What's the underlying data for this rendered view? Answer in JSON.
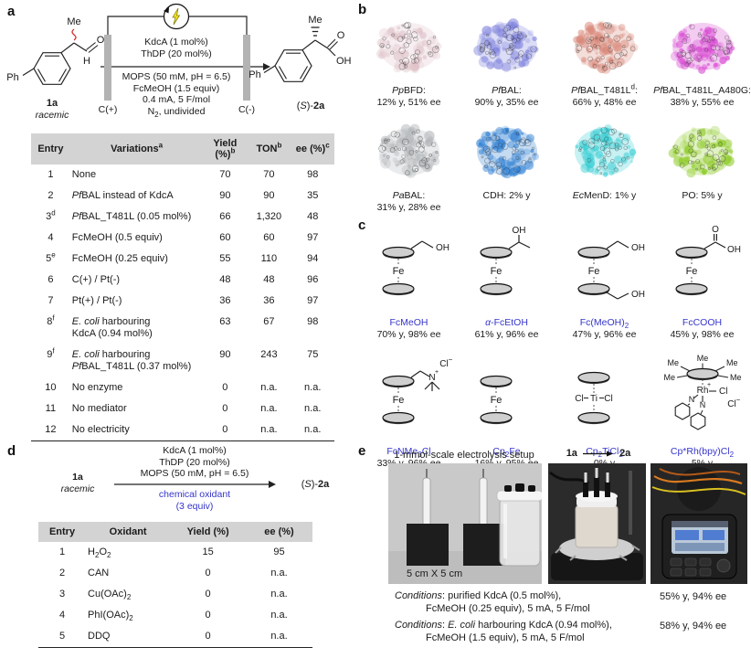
{
  "panels": {
    "a": "a",
    "b": "b",
    "c": "c",
    "d": "d",
    "e": "e"
  },
  "colors": {
    "blue_text": "#3535cb",
    "red": "#e03030",
    "header_bg": "#d3d3d3"
  },
  "scheme_a": {
    "substrate_label": "1a",
    "substrate_sub": "racemic",
    "atoms": {
      "me": "Me",
      "o": "O",
      "h": "H",
      "ph": "Ph",
      "oh": "OH"
    },
    "cond_above": [
      "KdcA (1 mol%)",
      "ThDP (20 mol%)"
    ],
    "cond_below": [
      [
        [
          "n",
          "MOPS (50 mM, pH = 6.5)"
        ]
      ],
      [
        [
          "n",
          "FcMeOH (1.5 equiv)"
        ]
      ],
      [
        [
          "n",
          "0.4 mA, 5 F/mol"
        ]
      ],
      [
        [
          "n",
          "N"
        ],
        [
          "sub",
          "2"
        ],
        [
          "n",
          ", undivided"
        ]
      ]
    ],
    "electrode_left": "C(+)",
    "electrode_right": "C(-)",
    "product_label": [
      [
        "n",
        "("
      ],
      [
        "i",
        "S"
      ],
      [
        "n",
        ")-"
      ],
      [
        "b",
        "2a"
      ]
    ]
  },
  "table_a": {
    "headers": [
      [
        [
          "n",
          "Entry"
        ]
      ],
      [
        [
          "n",
          "Variations"
        ],
        [
          "sup",
          "a"
        ]
      ],
      [
        [
          "n",
          "Yield (%)"
        ],
        [
          "sup",
          "b"
        ]
      ],
      [
        [
          "n",
          "TON"
        ],
        [
          "sup",
          "b"
        ]
      ],
      [
        [
          "n",
          "ee (%)"
        ],
        [
          "sup",
          "c"
        ]
      ]
    ],
    "rows": [
      {
        "entry": [
          [
            "n",
            "1"
          ]
        ],
        "variation": [
          [
            "n",
            "None"
          ]
        ],
        "yield": "70",
        "ton": "70",
        "ee": "98"
      },
      {
        "entry": [
          [
            "n",
            "2"
          ]
        ],
        "variation": [
          [
            "i",
            "Pf"
          ],
          [
            "n",
            "BAL instead of KdcA"
          ]
        ],
        "yield": "90",
        "ton": "90",
        "ee": "35"
      },
      {
        "entry": [
          [
            "n",
            "3"
          ],
          [
            "sup",
            "d"
          ]
        ],
        "variation": [
          [
            "i",
            "Pf"
          ],
          [
            "n",
            "BAL_T481L (0.05 mol%)"
          ]
        ],
        "yield": "66",
        "ton": "1,320",
        "ee": "48"
      },
      {
        "entry": [
          [
            "n",
            "4"
          ]
        ],
        "variation": [
          [
            "n",
            "FcMeOH (0.5 equiv)"
          ]
        ],
        "yield": "60",
        "ton": "60",
        "ee": "97"
      },
      {
        "entry": [
          [
            "n",
            "5"
          ],
          [
            "sup",
            "e"
          ]
        ],
        "variation": [
          [
            "n",
            "FcMeOH (0.25 equiv)"
          ]
        ],
        "yield": "55",
        "ton": "110",
        "ee": "94"
      },
      {
        "entry": [
          [
            "n",
            "6"
          ]
        ],
        "variation": [
          [
            "n",
            "C(+) / Pt(-)"
          ]
        ],
        "yield": "48",
        "ton": "48",
        "ee": "96"
      },
      {
        "entry": [
          [
            "n",
            "7"
          ]
        ],
        "variation": [
          [
            "n",
            "Pt(+) / Pt(-)"
          ]
        ],
        "yield": "36",
        "ton": "36",
        "ee": "97"
      },
      {
        "entry": [
          [
            "n",
            "8"
          ],
          [
            "sup",
            "f"
          ]
        ],
        "variation": [
          [
            "i",
            "E. coli"
          ],
          [
            "n",
            " harbouring"
          ],
          [
            "br",
            ""
          ],
          [
            "n",
            "KdcA (0.94 mol%)"
          ]
        ],
        "yield": "63",
        "ton": "67",
        "ee": "98"
      },
      {
        "entry": [
          [
            "n",
            "9"
          ],
          [
            "sup",
            "f"
          ]
        ],
        "variation": [
          [
            "i",
            "E. coli"
          ],
          [
            "n",
            " harbouring"
          ],
          [
            "br",
            ""
          ],
          [
            "i",
            "Pf"
          ],
          [
            "n",
            "BAL_T481L (0.37 mol%)"
          ]
        ],
        "yield": "90",
        "ton": "243",
        "ee": "75"
      },
      {
        "entry": [
          [
            "n",
            "10"
          ]
        ],
        "variation": [
          [
            "n",
            "No enzyme"
          ]
        ],
        "yield": "0",
        "ton": "n.a.",
        "ee": "n.a."
      },
      {
        "entry": [
          [
            "n",
            "11"
          ]
        ],
        "variation": [
          [
            "n",
            "No mediator"
          ]
        ],
        "yield": "0",
        "ton": "n.a.",
        "ee": "n.a."
      },
      {
        "entry": [
          [
            "n",
            "12"
          ]
        ],
        "variation": [
          [
            "n",
            "No electricity"
          ]
        ],
        "yield": "0",
        "ton": "n.a.",
        "ee": "n.a."
      }
    ]
  },
  "panel_b": {
    "proteins": [
      {
        "name": [
          [
            "i",
            "Pp"
          ],
          [
            "n",
            "BFD:"
          ]
        ],
        "stat": "12% y, 51% ee",
        "color": "#dfc3c9"
      },
      {
        "name": [
          [
            "i",
            "Pf"
          ],
          [
            "n",
            "BAL:"
          ]
        ],
        "stat": "90% y, 35% ee",
        "color": "#7f82dd"
      },
      {
        "name": [
          [
            "i",
            "Pf"
          ],
          [
            "n",
            "BAL_T481L"
          ],
          [
            "sup",
            "d"
          ],
          [
            "n",
            ":"
          ]
        ],
        "stat": "66% y, 48% ee",
        "color": "#d9897a"
      },
      {
        "name": [
          [
            "i",
            "Pf"
          ],
          [
            "n",
            "BAL_T481L_A480G:"
          ]
        ],
        "stat": "38% y, 55% ee",
        "color": "#d848d2"
      },
      {
        "name": [
          [
            "i",
            "Pa"
          ],
          [
            "n",
            "BAL:"
          ]
        ],
        "stat": "31% y, 28% ee",
        "color": "#b4b7ba"
      },
      {
        "name": [
          [
            "n",
            "CDH: 2% y"
          ]
        ],
        "stat": "",
        "color": "#2a7cd2"
      },
      {
        "name": [
          [
            "i",
            "Ec"
          ],
          [
            "n",
            "MenD: 1% y"
          ]
        ],
        "stat": "",
        "color": "#35cdd3"
      },
      {
        "name": [
          [
            "n",
            "PO: 5% y"
          ]
        ],
        "stat": "",
        "color": "#8fcb2a"
      }
    ]
  },
  "panel_c": {
    "mediators": [
      {
        "name": [
          [
            "n",
            "FcMeOH"
          ]
        ],
        "stat": "70% y, 98% ee",
        "kind": "fc_ch2oh"
      },
      {
        "name": [
          [
            "i",
            "α"
          ],
          [
            "n",
            "-FcEtOH"
          ]
        ],
        "stat": "61% y, 96% ee",
        "kind": "fc_etoh"
      },
      {
        "name": [
          [
            "n",
            "Fc(MeOH)"
          ],
          [
            "sub",
            "2"
          ]
        ],
        "stat": "47% y, 96% ee",
        "kind": "fc_meoh2"
      },
      {
        "name": [
          [
            "n",
            "FcCOOH"
          ]
        ],
        "stat": "45% y, 98% ee",
        "kind": "fc_cooh"
      },
      {
        "name": [
          [
            "n",
            "FcNMe"
          ],
          [
            "sub",
            "3"
          ],
          [
            "n",
            "Cl"
          ]
        ],
        "stat": "33% y, 96% ee",
        "kind": "fc_nme3"
      },
      {
        "name": [
          [
            "n",
            "Cp"
          ],
          [
            "sub",
            "2"
          ],
          [
            "n",
            "Fe"
          ]
        ],
        "stat": "16% y, 95% ee",
        "kind": "fc_plain"
      },
      {
        "name": [
          [
            "n",
            "Cp"
          ],
          [
            "sub",
            "2"
          ],
          [
            "n",
            "TiCl"
          ],
          [
            "sub",
            "2"
          ]
        ],
        "stat": "0% y",
        "kind": "ticl2"
      },
      {
        "name": [
          [
            "n",
            "Cp*Rh(bpy)Cl"
          ],
          [
            "sub",
            "2"
          ]
        ],
        "stat": "5% y",
        "kind": "cp_rh"
      }
    ]
  },
  "scheme_d": {
    "substrate_label": "1a",
    "substrate_sub": "racemic",
    "cond_above": [
      "KdcA (1 mol%)",
      "ThDP (20 mol%)",
      "MOPS (50 mM, pH = 6.5)"
    ],
    "cond_below": [
      "chemical oxidant",
      "(3 equiv)"
    ],
    "product_label": [
      [
        "n",
        "("
      ],
      [
        "i",
        "S"
      ],
      [
        "n",
        ")-"
      ],
      [
        "b",
        "2a"
      ]
    ]
  },
  "table_d": {
    "headers": [
      [
        [
          "n",
          "Entry"
        ]
      ],
      [
        [
          "n",
          "Oxidant"
        ]
      ],
      [
        [
          "n",
          "Yield (%)"
        ]
      ],
      [
        [
          "n",
          "ee (%)"
        ]
      ]
    ],
    "rows": [
      {
        "entry": [
          [
            "n",
            "1"
          ]
        ],
        "oxidant": [
          [
            "n",
            "H"
          ],
          [
            "sub",
            "2"
          ],
          [
            "n",
            "O"
          ],
          [
            "sub",
            "2"
          ]
        ],
        "yield": "15",
        "ee": "95"
      },
      {
        "entry": [
          [
            "n",
            "2"
          ]
        ],
        "oxidant": [
          [
            "n",
            "CAN"
          ]
        ],
        "yield": "0",
        "ee": "n.a."
      },
      {
        "entry": [
          [
            "n",
            "3"
          ]
        ],
        "oxidant": [
          [
            "n",
            "Cu(OAc)"
          ],
          [
            "sub",
            "2"
          ]
        ],
        "yield": "0",
        "ee": "n.a."
      },
      {
        "entry": [
          [
            "n",
            "4"
          ]
        ],
        "oxidant": [
          [
            "n",
            "PhI(OAc)"
          ],
          [
            "sub",
            "2"
          ]
        ],
        "yield": "0",
        "ee": "n.a."
      },
      {
        "entry": [
          [
            "n",
            "5"
          ]
        ],
        "oxidant": [
          [
            "n",
            "DDQ"
          ]
        ],
        "yield": "0",
        "ee": "n.a."
      }
    ]
  },
  "panel_e": {
    "title_left": "1-mmol-scale electrolysis setup",
    "flow_from": "1a",
    "flow_to": "2a",
    "scale_label": "5 cm X 5 cm",
    "conditions": [
      {
        "line1": [
          [
            "i",
            "Conditions"
          ],
          [
            "n",
            ": purified KdcA (0.5 mol%),"
          ]
        ],
        "line2": "FcMeOH (0.25 equiv), 5 mA, 5 F/mol",
        "result": "55% y, 94% ee"
      },
      {
        "line1": [
          [
            "i",
            "Conditions"
          ],
          [
            "n",
            ": "
          ],
          [
            "i",
            "E. coli"
          ],
          [
            "n",
            " harbouring KdcA (0.94 mol%),"
          ]
        ],
        "line2": "FcMeOH (1.5 equiv), 5 mA, 5 F/mol",
        "result": "58% y, 94% ee"
      }
    ]
  }
}
